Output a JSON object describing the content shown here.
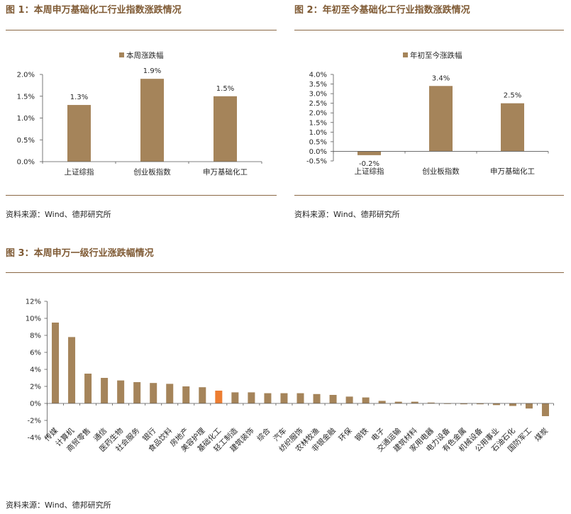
{
  "colors": {
    "caption": "#7f5a34",
    "rule": "#8a6844",
    "bar": "#a5845a",
    "axis": "#595959",
    "text": "#262626"
  },
  "chart_data": [
    {
      "type": "bar",
      "title": "图 1：本周申万基础化工行业指数涨跌情况",
      "source": "资料来源：Wind、德邦研究所",
      "categories": [
        "上证综指",
        "创业板指数",
        "申万基础化工"
      ],
      "series": [
        {
          "name": "本周涨跌幅",
          "values": [
            1.3,
            1.9,
            1.5
          ],
          "labels": [
            "1.3%",
            "1.9%",
            "1.5%"
          ]
        }
      ],
      "ylim": [
        0,
        2.0
      ],
      "yticks": [
        0,
        0.5,
        1.0,
        1.5,
        2.0
      ],
      "ytick_labels": [
        "0.0%",
        "0.5%",
        "1.0%",
        "1.5%",
        "2.0%"
      ],
      "legend": "top-center",
      "grid": false
    },
    {
      "type": "bar",
      "title": "图 2：年初至今基础化工行业指数涨跌情况",
      "source": "资料来源：Wind、德邦研究所",
      "categories": [
        "上证综指",
        "创业板指数",
        "申万基础化工"
      ],
      "series": [
        {
          "name": "年初至今涨跌幅",
          "values": [
            -0.2,
            3.4,
            2.5
          ],
          "labels": [
            "-0.2%",
            "3.4%",
            "2.5%"
          ]
        }
      ],
      "ylim": [
        -0.5,
        4.0
      ],
      "yticks": [
        -0.5,
        0,
        0.5,
        1.0,
        1.5,
        2.0,
        2.5,
        3.0,
        3.5,
        4.0
      ],
      "ytick_labels": [
        "-0.5%",
        "0.0%",
        "0.5%",
        "1.0%",
        "1.5%",
        "2.0%",
        "2.5%",
        "3.0%",
        "3.5%",
        "4.0%"
      ],
      "legend": "top-center",
      "grid": false
    },
    {
      "type": "bar",
      "title": "图 3：本周申万一级行业涨跌幅情况",
      "source": "资料来源：Wind、德邦研究所",
      "categories": [
        "传媒",
        "计算机",
        "商贸零售",
        "通信",
        "医药生物",
        "社会服务",
        "银行",
        "食品饮料",
        "房地产",
        "美容护理",
        "基础化工",
        "轻工制造",
        "建筑装饰",
        "综合",
        "汽车",
        "纺织服饰",
        "农林牧渔",
        "非银金融",
        "环保",
        "钢铁",
        "电子",
        "交通运输",
        "建筑材料",
        "家用电器",
        "电力设备",
        "有色金属",
        "机械设备",
        "公用事业",
        "石油石化",
        "国防军工",
        "煤炭"
      ],
      "series": [
        {
          "values": [
            9.5,
            7.8,
            3.5,
            3.0,
            2.7,
            2.5,
            2.4,
            2.3,
            2.0,
            1.9,
            1.5,
            1.3,
            1.3,
            1.2,
            1.2,
            1.2,
            1.1,
            1.0,
            0.8,
            0.7,
            0.3,
            0.2,
            0.2,
            0.1,
            0.0,
            -0.1,
            -0.1,
            -0.2,
            -0.3,
            -0.6,
            -1.5
          ]
        }
      ],
      "highlight": {
        "index": 10,
        "color": "#ed7d31"
      },
      "ylim": [
        -4,
        12
      ],
      "yticks": [
        -4,
        -2,
        0,
        2,
        4,
        6,
        8,
        10,
        12
      ],
      "ytick_labels": [
        "-4%",
        "-2%",
        "0%",
        "2%",
        "4%",
        "6%",
        "8%",
        "10%",
        "12%"
      ],
      "legend": "none",
      "grid": false
    }
  ]
}
